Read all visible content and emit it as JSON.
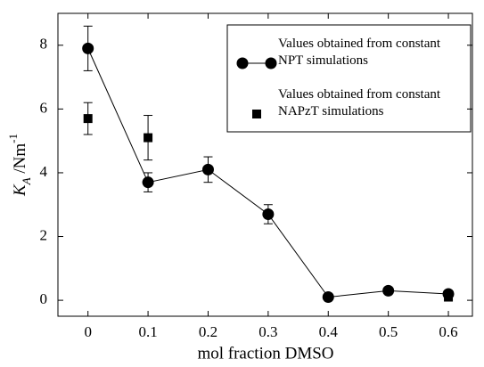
{
  "chart_data": {
    "type": "scatter",
    "xlabel": "mol fraction DMSO",
    "ylabel": {
      "symbol": "K",
      "subscript": "A",
      "unit": " /Nm",
      "exponent": "-1"
    },
    "x": [
      0,
      0.1,
      0.2,
      0.3,
      0.4,
      0.5,
      0.6
    ],
    "series": [
      {
        "name": "Values obtained from constant NPT simulations",
        "color": "#000000",
        "marker": "circle",
        "line": true,
        "values": [
          7.9,
          3.7,
          4.1,
          2.7,
          0.1,
          0.3,
          0.2
        ],
        "errors": [
          0.7,
          0.3,
          0.4,
          0.3,
          null,
          null,
          null
        ]
      },
      {
        "name": "Values obtained from constant NAPzT simulations",
        "color": "#000000",
        "marker": "square",
        "line": false,
        "values": [
          5.7,
          5.1,
          null,
          null,
          null,
          null,
          0.1
        ],
        "errors": [
          0.5,
          0.7,
          null,
          null,
          null,
          null,
          null
        ]
      }
    ],
    "xlim": [
      -0.05,
      0.64
    ],
    "xticks": [
      0,
      0.1,
      0.2,
      0.3,
      0.4,
      0.5,
      0.6
    ],
    "ylim": [
      -0.5,
      9
    ],
    "yticks": [
      0,
      2,
      4,
      6,
      8
    ],
    "legend": "upper right"
  }
}
